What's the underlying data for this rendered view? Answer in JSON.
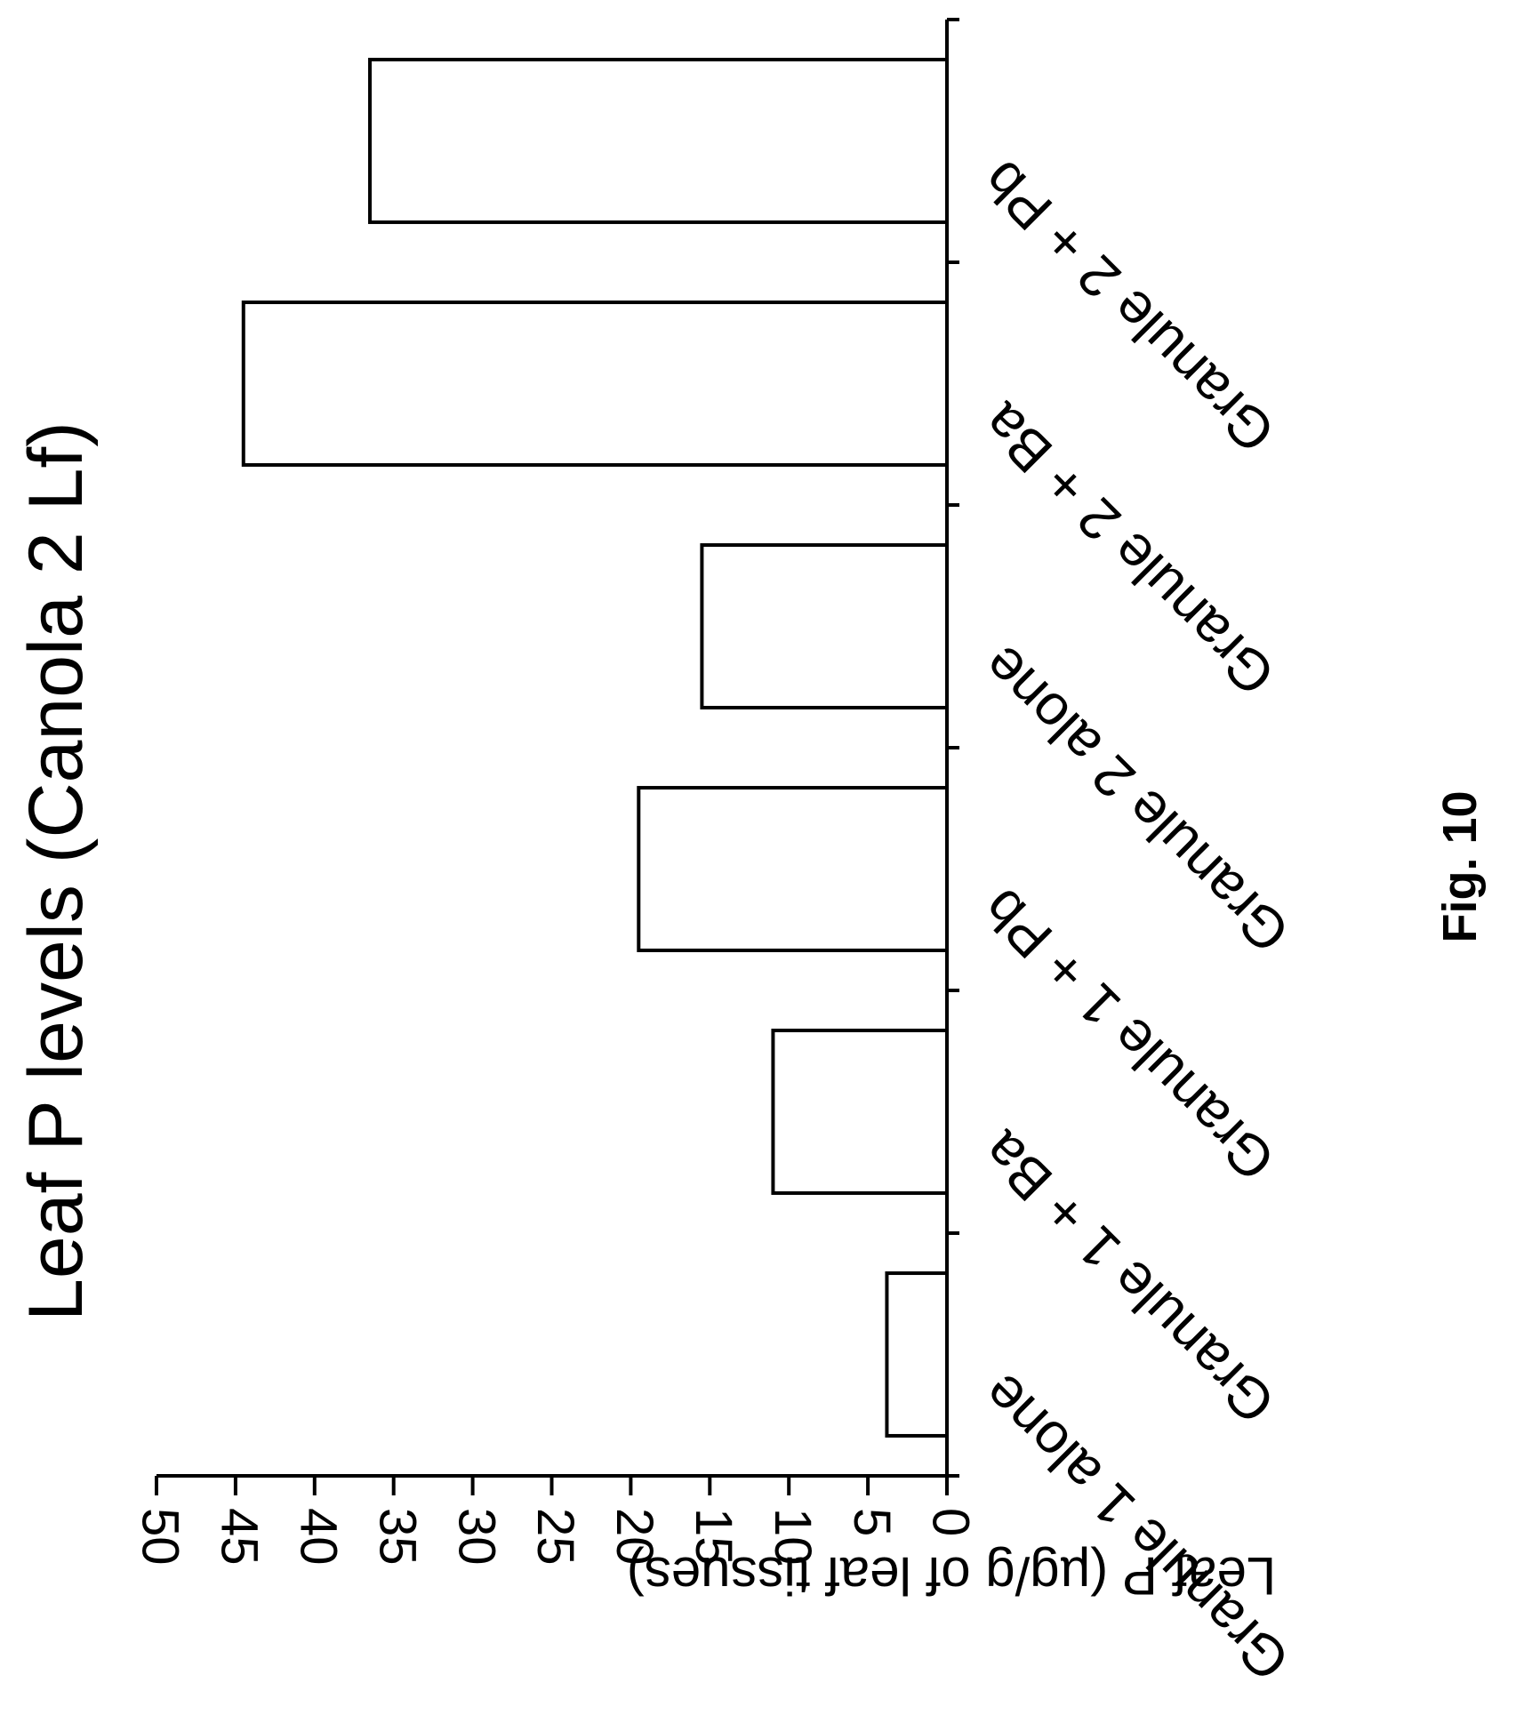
{
  "chart_data": {
    "type": "bar",
    "orientation": "rotated-90-clockwise",
    "title": "Leaf P levels  (Canola  2 Lf)",
    "ylabel": "Leaf P (µg/g of leaf tissues)",
    "xlabel": "",
    "categories": [
      "Granule 1 alone",
      "Granule 1 + Ba",
      "Granule 1 + Pb",
      "Granule 2 alone",
      "Granule 2 + Ba",
      "Granule 2 + Pb"
    ],
    "values": [
      3.8,
      11,
      19.5,
      15.5,
      44.5,
      36.5
    ],
    "ylim": [
      0,
      50
    ],
    "yticks": [
      0,
      5,
      10,
      15,
      20,
      25,
      30,
      35,
      40,
      45,
      50
    ],
    "grid": false,
    "bar_fill": "#ffffff",
    "bar_stroke": "#000000"
  },
  "figure_label": "Fig. 10"
}
